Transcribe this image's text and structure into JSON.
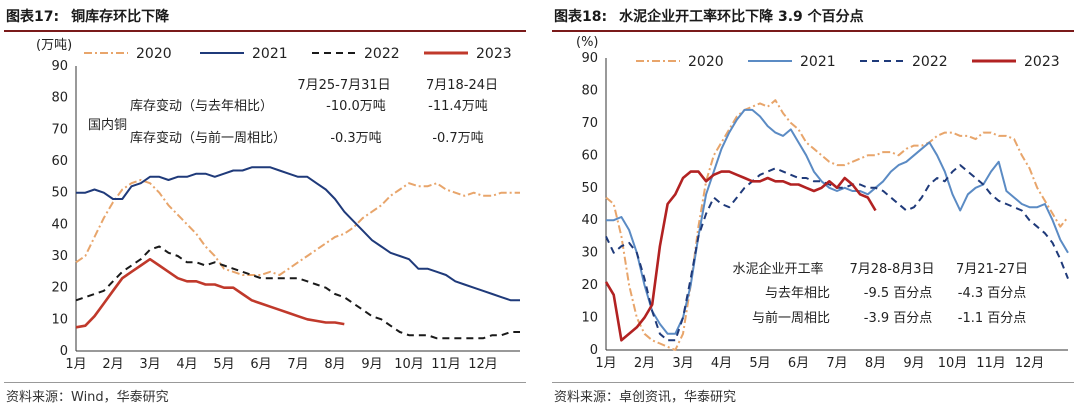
{
  "left": {
    "fig_label": "图表17:",
    "fig_title": "铜库存环比下降",
    "source": "资料来源：Wind，华泰研究",
    "chart_data": {
      "type": "line",
      "ylabel": "(万吨)",
      "ylim": [
        0,
        90
      ],
      "yticks": [
        0,
        10,
        20,
        30,
        40,
        50,
        60,
        70,
        80,
        90
      ],
      "xticks": [
        "1月",
        "2月",
        "3月",
        "4月",
        "5月",
        "6月",
        "7月",
        "8月",
        "9月",
        "10月",
        "11月",
        "12月"
      ],
      "series": [
        {
          "name": "2020",
          "color": "#E8A56B",
          "style": "dashdot",
          "x": [
            1.0,
            1.25,
            1.5,
            1.75,
            2.0,
            2.25,
            2.5,
            2.75,
            3.0,
            3.25,
            3.5,
            3.75,
            4.0,
            4.25,
            4.5,
            4.75,
            5.0,
            5.25,
            5.5,
            5.75,
            6.0,
            6.25,
            6.5,
            6.75,
            7.0,
            7.25,
            7.5,
            7.75,
            8.0,
            8.25,
            8.5,
            8.75,
            9.0,
            9.25,
            9.5,
            9.75,
            10.0,
            10.25,
            10.5,
            10.75,
            11.0,
            11.25,
            11.5,
            11.75,
            12.0,
            12.25,
            12.5,
            12.75,
            13.0
          ],
          "values": [
            28,
            30,
            36,
            42,
            47,
            51,
            53,
            54,
            53,
            50,
            46,
            43,
            40,
            37,
            33,
            30,
            26,
            25,
            24,
            24,
            24,
            25,
            24,
            26,
            28,
            30,
            32,
            34,
            36,
            37,
            39,
            42,
            44,
            46,
            49,
            51,
            53,
            52,
            52,
            53,
            51,
            50,
            49,
            50,
            49,
            49,
            50,
            50,
            50
          ]
        },
        {
          "name": "2021",
          "color": "#1F3A7A",
          "style": "solid",
          "x": [
            1.0,
            1.25,
            1.5,
            1.75,
            2.0,
            2.25,
            2.5,
            2.75,
            3.0,
            3.25,
            3.5,
            3.75,
            4.0,
            4.25,
            4.5,
            4.75,
            5.0,
            5.25,
            5.5,
            5.75,
            6.0,
            6.25,
            6.5,
            6.75,
            7.0,
            7.25,
            7.5,
            7.75,
            8.0,
            8.25,
            8.5,
            8.75,
            9.0,
            9.25,
            9.5,
            9.75,
            10.0,
            10.25,
            10.5,
            10.75,
            11.0,
            11.25,
            11.5,
            11.75,
            12.0,
            12.25,
            12.5,
            12.75,
            13.0
          ],
          "values": [
            50,
            50,
            51,
            50,
            48,
            48,
            52,
            53,
            55,
            55,
            54,
            55,
            55,
            56,
            56,
            55,
            56,
            57,
            57,
            58,
            58,
            58,
            57,
            56,
            55,
            55,
            53,
            51,
            48,
            44,
            41,
            38,
            35,
            33,
            31,
            30,
            29,
            26,
            26,
            25,
            24,
            22,
            21,
            20,
            19,
            18,
            17,
            16,
            16
          ]
        },
        {
          "name": "2022",
          "color": "#1a1a1a",
          "style": "dash",
          "x": [
            1.0,
            1.25,
            1.5,
            1.75,
            2.0,
            2.25,
            2.5,
            2.75,
            3.0,
            3.25,
            3.5,
            3.75,
            4.0,
            4.25,
            4.5,
            4.75,
            5.0,
            5.25,
            5.5,
            5.75,
            6.0,
            6.25,
            6.5,
            6.75,
            7.0,
            7.25,
            7.5,
            7.75,
            8.0,
            8.25,
            8.5,
            8.75,
            9.0,
            9.25,
            9.5,
            9.75,
            10.0,
            10.25,
            10.5,
            10.75,
            11.0,
            11.25,
            11.5,
            11.75,
            12.0,
            12.25,
            12.5,
            12.75,
            13.0
          ],
          "values": [
            16,
            17,
            18,
            19,
            22,
            25,
            27,
            29,
            32,
            33,
            31,
            30,
            28,
            28,
            27,
            28,
            27,
            26,
            25,
            24,
            23,
            23,
            23,
            23,
            23,
            22,
            21,
            20,
            18,
            17,
            15,
            13,
            11,
            10,
            8,
            6,
            5,
            5,
            5,
            4,
            4,
            4,
            4,
            4,
            4,
            5,
            5,
            6,
            6
          ]
        },
        {
          "name": "2023",
          "color": "#C0392B",
          "style": "solid",
          "x": [
            1.0,
            1.25,
            1.5,
            1.75,
            2.0,
            2.25,
            2.5,
            2.75,
            3.0,
            3.25,
            3.5,
            3.75,
            4.0,
            4.25,
            4.5,
            4.75,
            5.0,
            5.25,
            5.5,
            5.75,
            6.0,
            6.25,
            6.5,
            6.75,
            7.0,
            7.25,
            7.5,
            7.75,
            8.0,
            8.25
          ],
          "values": [
            7.5,
            8,
            11,
            15,
            19,
            23,
            25,
            27,
            29,
            27,
            25,
            23,
            22,
            22,
            21,
            21,
            20,
            20,
            18,
            16,
            15,
            14,
            13,
            12,
            11,
            10,
            9.5,
            9,
            9,
            8.5
          ]
        }
      ],
      "annotations": {
        "col1_header": "7月25-7月31日",
        "col2_header": "7月18-24日",
        "group_label": "国内铜",
        "row1_label": "库存变动（与去年相比）",
        "row1_v1": "-10.0万吨",
        "row1_v2": "-11.4万吨",
        "row2_label": "库存变动（与前一周相比）",
        "row2_v1": "-0.3万吨",
        "row2_v2": "-0.7万吨"
      }
    }
  },
  "right": {
    "fig_label": "图表18:",
    "fig_title": "水泥企业开工率环比下降 3.9 个百分点",
    "source": "资料来源：卓创资讯，华泰研究",
    "chart_data": {
      "type": "line",
      "ylabel": "(%)",
      "ylim": [
        0,
        90
      ],
      "yticks": [
        0,
        10,
        20,
        30,
        40,
        50,
        60,
        70,
        80,
        90
      ],
      "xticks": [
        "1月",
        "2月",
        "3月",
        "4月",
        "5月",
        "6月",
        "7月",
        "8月",
        "9月",
        "10月",
        "11月",
        "12月"
      ],
      "series": [
        {
          "name": "2020",
          "color": "#E8A56B",
          "style": "dashdot",
          "x": [
            1.0,
            1.2,
            1.4,
            1.6,
            1.8,
            2.0,
            2.2,
            2.4,
            2.6,
            2.8,
            3.0,
            3.2,
            3.4,
            3.6,
            3.8,
            4.0,
            4.2,
            4.4,
            4.6,
            4.8,
            5.0,
            5.2,
            5.4,
            5.6,
            5.8,
            6.0,
            6.2,
            6.4,
            6.6,
            6.8,
            7.0,
            7.2,
            7.4,
            7.6,
            7.8,
            8.0,
            8.2,
            8.4,
            8.6,
            8.8,
            9.0,
            9.2,
            9.4,
            9.6,
            9.8,
            10.0,
            10.2,
            10.4,
            10.6,
            10.8,
            11.0,
            11.2,
            11.4,
            11.6,
            11.8,
            12.0,
            12.2,
            12.4,
            12.6,
            12.8,
            13.0
          ],
          "values": [
            47,
            45,
            35,
            20,
            10,
            5,
            3,
            2,
            1,
            0,
            5,
            20,
            38,
            52,
            60,
            64,
            68,
            72,
            74,
            75,
            76,
            75,
            77,
            73,
            70,
            68,
            64,
            62,
            60,
            58,
            57,
            57,
            58,
            59,
            60,
            60,
            61,
            61,
            60,
            62,
            63,
            63,
            64,
            66,
            67,
            67,
            66,
            66,
            65,
            67,
            67,
            66,
            66,
            65,
            60,
            56,
            50,
            46,
            42,
            38,
            41
          ]
        },
        {
          "name": "2021",
          "color": "#5B8BC4",
          "style": "solid",
          "x": [
            1.0,
            1.2,
            1.4,
            1.6,
            1.8,
            2.0,
            2.2,
            2.4,
            2.6,
            2.8,
            3.0,
            3.2,
            3.4,
            3.6,
            3.8,
            4.0,
            4.2,
            4.4,
            4.6,
            4.8,
            5.0,
            5.2,
            5.4,
            5.6,
            5.8,
            6.0,
            6.2,
            6.4,
            6.6,
            6.8,
            7.0,
            7.2,
            7.4,
            7.6,
            7.8,
            8.0,
            8.2,
            8.4,
            8.6,
            8.8,
            9.0,
            9.2,
            9.4,
            9.6,
            9.8,
            10.0,
            10.2,
            10.4,
            10.6,
            10.8,
            11.0,
            11.2,
            11.4,
            11.6,
            11.8,
            12.0,
            12.2,
            12.4,
            12.6,
            12.8,
            13.0
          ],
          "values": [
            40,
            40,
            41,
            37,
            30,
            20,
            12,
            8,
            5,
            5,
            10,
            20,
            35,
            48,
            55,
            62,
            67,
            71,
            74,
            74,
            72,
            69,
            67,
            66,
            68,
            64,
            60,
            55,
            52,
            50,
            49,
            50,
            49,
            49,
            48,
            50,
            52,
            55,
            57,
            58,
            60,
            62,
            64,
            60,
            55,
            48,
            43,
            48,
            50,
            51,
            55,
            58,
            49,
            47,
            45,
            44,
            44,
            45,
            40,
            34,
            30
          ]
        },
        {
          "name": "2022",
          "color": "#1F3A7A",
          "style": "dash",
          "x": [
            1.0,
            1.2,
            1.4,
            1.6,
            1.8,
            2.0,
            2.2,
            2.4,
            2.6,
            2.8,
            3.0,
            3.2,
            3.4,
            3.6,
            3.8,
            4.0,
            4.2,
            4.4,
            4.6,
            4.8,
            5.0,
            5.2,
            5.4,
            5.6,
            5.8,
            6.0,
            6.2,
            6.4,
            6.6,
            6.8,
            7.0,
            7.2,
            7.4,
            7.6,
            7.8,
            8.0,
            8.2,
            8.4,
            8.6,
            8.8,
            9.0,
            9.2,
            9.4,
            9.6,
            9.8,
            10.0,
            10.2,
            10.4,
            10.6,
            10.8,
            11.0,
            11.2,
            11.4,
            11.6,
            11.8,
            12.0,
            12.2,
            12.4,
            12.6,
            12.8,
            13.0
          ],
          "values": [
            35,
            30,
            32,
            33,
            30,
            22,
            12,
            5,
            3,
            3,
            10,
            22,
            35,
            42,
            47,
            45,
            44,
            47,
            50,
            52,
            54,
            55,
            56,
            55,
            54,
            53,
            53,
            52,
            52,
            51,
            50,
            50,
            51,
            51,
            50,
            50,
            49,
            47,
            45,
            43,
            44,
            47,
            51,
            53,
            52,
            55,
            57,
            55,
            53,
            51,
            48,
            46,
            45,
            44,
            43,
            40,
            38,
            36,
            33,
            28,
            22
          ]
        },
        {
          "name": "2023",
          "color": "#B22222",
          "style": "solid",
          "x": [
            1.0,
            1.2,
            1.4,
            1.6,
            1.8,
            2.0,
            2.2,
            2.4,
            2.6,
            2.8,
            3.0,
            3.2,
            3.4,
            3.6,
            3.8,
            4.0,
            4.2,
            4.4,
            4.6,
            4.8,
            5.0,
            5.2,
            5.4,
            5.6,
            5.8,
            6.0,
            6.2,
            6.4,
            6.6,
            6.8,
            7.0,
            7.2,
            7.4,
            7.6,
            7.8,
            8.0
          ],
          "values": [
            21,
            17,
            3,
            5,
            7,
            10,
            14,
            32,
            45,
            48,
            53,
            55,
            55,
            52,
            54,
            55,
            55,
            54,
            53,
            52,
            52,
            53,
            52,
            52,
            51,
            51,
            50,
            49,
            50,
            52,
            50,
            53,
            51,
            48,
            47,
            43
          ]
        }
      ],
      "annotations": {
        "group_label": "水泥企业开工率",
        "col1_header": "7月28-8月3日",
        "col2_header": "7月21-27日",
        "row1_label": "与去年相比",
        "row1_v1": "-9.5 百分点",
        "row1_v2": "-4.3 百分点",
        "row2_label": "与前一周相比",
        "row2_v1": "-3.9 百分点",
        "row2_v2": "-1.1 百分点"
      }
    }
  }
}
